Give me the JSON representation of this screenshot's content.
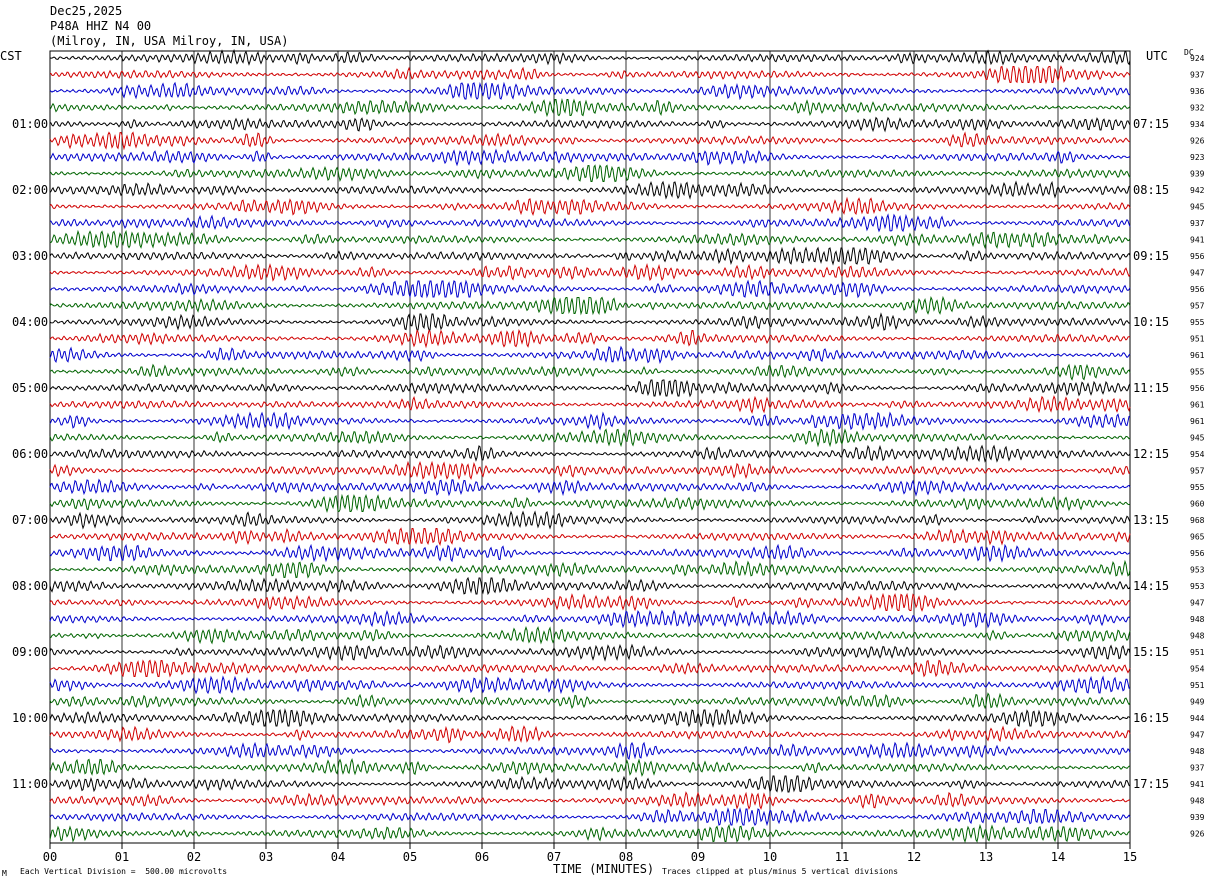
{
  "header": {
    "date": "Dec25,2025",
    "station": "P48A HHZ N4 00",
    "location": "(Milroy, IN, USA Milroy, IN, USA)"
  },
  "left_tz": "CST",
  "right_tz": "UTC",
  "dc_label": "DC",
  "footer": {
    "scale_note": "Each Vertical Division =  500.00 microvolts",
    "xlabel": "TIME (MINUTES)",
    "clip_note": "Traces clipped at plus/minus 5 vertical divisions",
    "corner_mark": "M"
  },
  "colors": {
    "trace_cycle": [
      "#000000",
      "#d00000",
      "#0000cc",
      "#006400"
    ],
    "grid": "#000000"
  },
  "chart_data": {
    "type": "line",
    "title": "",
    "xlabel": "TIME (MINUTES)",
    "xlim": [
      0,
      15
    ],
    "x_ticks": [
      "00",
      "01",
      "02",
      "03",
      "04",
      "05",
      "06",
      "07",
      "08",
      "09",
      "10",
      "11",
      "12",
      "13",
      "14",
      "15"
    ],
    "left_hour_labels": [
      "01:00",
      "02:00",
      "03:00",
      "04:00",
      "05:00",
      "06:00",
      "07:00",
      "08:00",
      "09:00",
      "10:00",
      "11:00"
    ],
    "right_hour_labels": [
      "07:15",
      "08:15",
      "09:15",
      "10:15",
      "11:15",
      "12:15",
      "13:15",
      "14:15",
      "15:15",
      "16:15",
      "17:15"
    ],
    "hour_label_rows": [
      4,
      8,
      12,
      16,
      20,
      24,
      28,
      32,
      36,
      40,
      44
    ],
    "trace_count": 48,
    "trace_dc_offsets": [
      924,
      937,
      936,
      932,
      934,
      926,
      923,
      939,
      942,
      945,
      937,
      941,
      956,
      947,
      956,
      957,
      955,
      951,
      961,
      955,
      956,
      961,
      961,
      945,
      954,
      957,
      955,
      960,
      968,
      965,
      956,
      953,
      953,
      947,
      948,
      948,
      951,
      954,
      951,
      949,
      944,
      947,
      948,
      937,
      941,
      948,
      939,
      926
    ]
  }
}
